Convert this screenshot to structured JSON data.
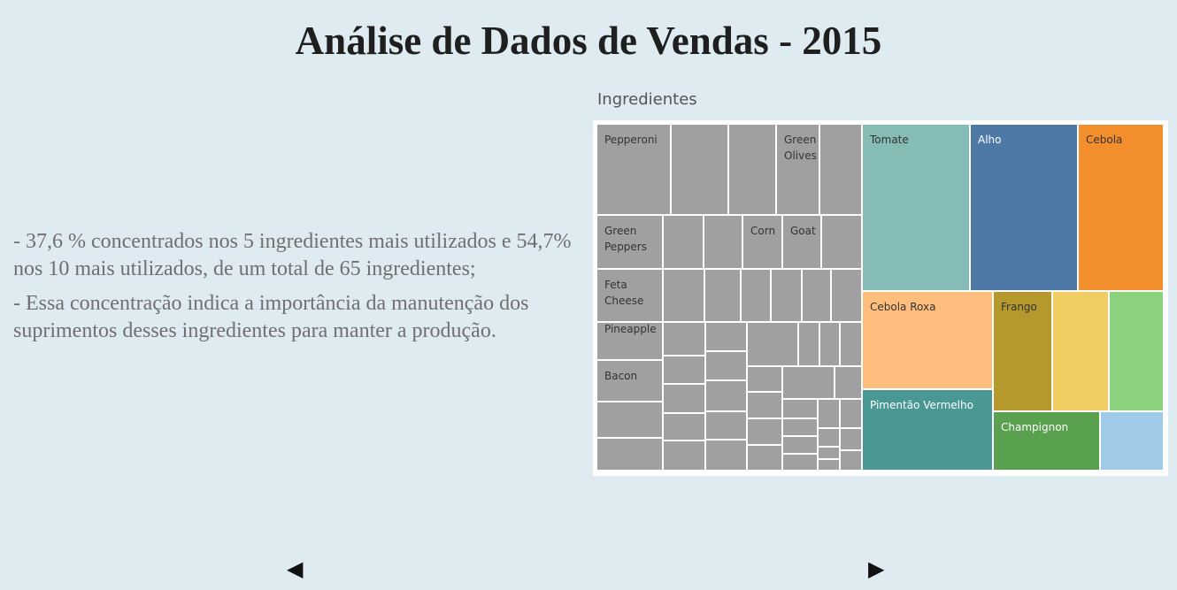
{
  "page": {
    "title": "Análise de Dados de Vendas - 2015",
    "insights": [
      "- 37,6 % concentrados nos 5 ingredientes mais utilizados e 54,7% nos 10 mais utilizados, de um total de 65 ingredientes;",
      "- Essa concentração indica a importância da manutenção dos suprimentos desses ingredientes para manter a produção."
    ]
  },
  "nav": {
    "prev_icon": "◀",
    "next_icon": "▶"
  },
  "chart_data": {
    "type": "treemap",
    "title": "Ingredientes",
    "highlighted": [
      {
        "name": "Tomate",
        "label": "Tomate",
        "color": "#86bcb6",
        "text_color": "#333333"
      },
      {
        "name": "Alho",
        "label": "Alho",
        "color": "#4e79a7",
        "text_color": "#ffffff"
      },
      {
        "name": "Cebola",
        "label": "Cebola",
        "color": "#f28e2b",
        "text_color": "#333333"
      },
      {
        "name": "Cebola Roxa",
        "label": "Cebola Roxa",
        "color": "#ffbe7d",
        "text_color": "#333333"
      },
      {
        "name": "Pimentão Vermelho",
        "label": "Pimentão Vermelho",
        "color": "#499894",
        "text_color": "#ffffff"
      },
      {
        "name": "Frango",
        "label": "Frango",
        "color": "#b6992d",
        "text_color": "#333333"
      },
      {
        "name": "",
        "label": "",
        "color": "#f1ce63"
      },
      {
        "name": "",
        "label": "",
        "color": "#8cd17d"
      },
      {
        "name": "Champignon",
        "label": "Champignon",
        "color": "#59a14f",
        "text_color": "#ffffff"
      },
      {
        "name": "",
        "label": "",
        "color": "#a0cbe8"
      }
    ],
    "others_color": "#a0a0a0",
    "others_labels": [
      "Pepperoni",
      "Green Olives",
      "Green Peppers",
      "Corn",
      "Goat",
      "Feta Cheese",
      "Pineapple",
      "Bacon"
    ],
    "total_ingredients": 65
  }
}
